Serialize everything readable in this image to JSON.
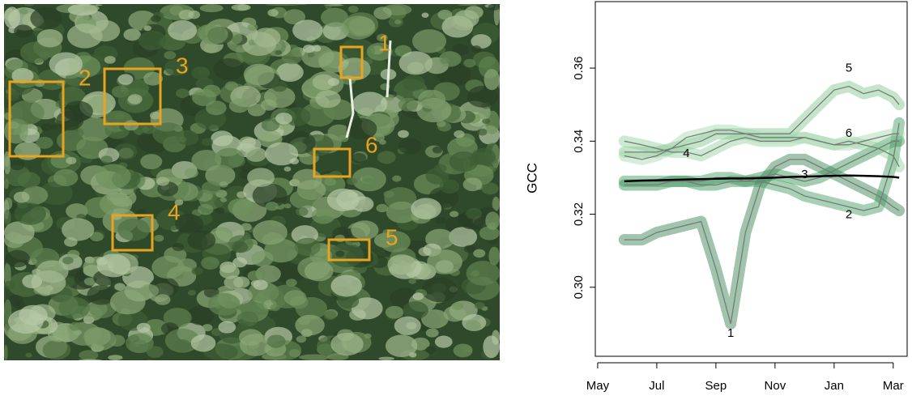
{
  "chart_data": {
    "type": "line",
    "y_label": "GCC",
    "xlim": [
      -0.08,
      10.47
    ],
    "ylim": [
      0.2811,
      0.3782
    ],
    "xticks": [
      {
        "value": 0,
        "label": "May"
      },
      {
        "value": 2,
        "label": "Jul"
      },
      {
        "value": 4,
        "label": "Sep"
      },
      {
        "value": 6,
        "label": "Nov"
      },
      {
        "value": 8,
        "label": "Jan"
      },
      {
        "value": 10,
        "label": "Mar"
      }
    ],
    "yticks": [
      {
        "value": 0.3,
        "label": "0.30"
      },
      {
        "value": 0.32,
        "label": "0.32"
      },
      {
        "value": 0.34,
        "label": "0.34"
      },
      {
        "value": 0.36,
        "label": "0.36"
      }
    ],
    "line_color": "#7a7a7a",
    "x": [
      0.9,
      1.5,
      2,
      2.5,
      3,
      3.5,
      4,
      4.5,
      5,
      5.5,
      6,
      6.5,
      7,
      7.5,
      8,
      8.5,
      9,
      9.5,
      10,
      10.2
    ],
    "series": [
      {
        "name": "1",
        "color": "#2e7d4a",
        "values": [
          0.313,
          0.313,
          0.315,
          0.316,
          0.317,
          0.318,
          0.305,
          0.29,
          0.315,
          0.328,
          0.333,
          0.335,
          0.335,
          0.333,
          0.331,
          0.329,
          0.327,
          0.325,
          0.322,
          0.321
        ]
      },
      {
        "name": "2",
        "color": "#3a9a5a",
        "values": [
          0.329,
          0.329,
          0.329,
          0.329,
          0.329,
          0.329,
          0.33,
          0.33,
          0.329,
          0.329,
          0.328,
          0.327,
          0.325,
          0.324,
          0.323,
          0.322,
          0.321,
          0.322,
          0.335,
          0.345
        ]
      },
      {
        "name": "3",
        "color": "#2f8f50",
        "values": [
          0.328,
          0.328,
          0.328,
          0.329,
          0.329,
          0.328,
          0.328,
          0.329,
          0.329,
          0.33,
          0.331,
          0.33,
          0.329,
          0.33,
          0.332,
          0.334,
          0.336,
          0.338,
          0.34,
          0.34
        ]
      },
      {
        "name": "4",
        "color": "#8fcf9a",
        "values": [
          0.34,
          0.339,
          0.338,
          0.337,
          0.337,
          0.336,
          0.338,
          0.34,
          0.341,
          0.34,
          0.34,
          0.34,
          0.341,
          0.34,
          0.339,
          0.34,
          0.339,
          0.338,
          0.336,
          0.333
        ]
      },
      {
        "name": "5",
        "color": "#7cc58a",
        "values": [
          0.337,
          0.337,
          0.337,
          0.338,
          0.339,
          0.34,
          0.342,
          0.342,
          0.342,
          0.342,
          0.342,
          0.342,
          0.346,
          0.35,
          0.354,
          0.355,
          0.353,
          0.354,
          0.352,
          0.35
        ]
      },
      {
        "name": "6",
        "color": "#a5d8ab",
        "values": [
          0.336,
          0.335,
          0.336,
          0.338,
          0.341,
          0.342,
          0.343,
          0.343,
          0.342,
          0.341,
          0.341,
          0.341,
          0.341,
          0.34,
          0.339,
          0.339,
          0.34,
          0.341,
          0.342,
          0.342
        ]
      }
    ],
    "mean": {
      "color": "#000000",
      "values": [
        0.329,
        0.3292,
        0.3293,
        0.3294,
        0.3295,
        0.3296,
        0.3297,
        0.3298,
        0.3298,
        0.3299,
        0.33,
        0.3302,
        0.3303,
        0.3304,
        0.3305,
        0.3306,
        0.3305,
        0.3304,
        0.3302,
        0.33
      ]
    }
  }
}
